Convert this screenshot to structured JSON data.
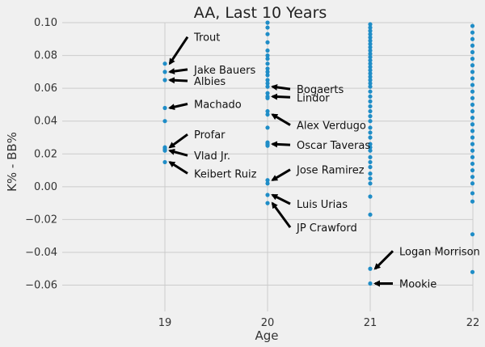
{
  "chart_data": {
    "type": "scatter",
    "title": "AA, Last 10 Years",
    "xlabel": "Age",
    "ylabel": "K% - BB%",
    "xlim": [
      18.0,
      22.0
    ],
    "ylim": [
      -0.076,
      0.1
    ],
    "xticks": [
      19,
      20,
      21,
      22
    ],
    "yticks": [
      -0.06,
      -0.04,
      -0.02,
      0.0,
      0.02,
      0.04,
      0.06,
      0.08,
      0.1
    ],
    "ytick_labels": [
      "−0.06",
      "−0.04",
      "−0.02",
      "0.00",
      "0.02",
      "0.04",
      "0.06",
      "0.08",
      "0.10"
    ],
    "grid": true,
    "color": "#1f8dc7",
    "series": [
      {
        "values": [
          [
            19,
            0.075
          ],
          [
            19,
            0.07
          ],
          [
            19,
            0.065
          ],
          [
            19,
            0.048
          ],
          [
            19,
            0.04
          ],
          [
            19,
            0.024
          ],
          [
            19,
            0.023
          ],
          [
            19,
            0.022
          ],
          [
            19,
            0.015
          ],
          [
            20,
            0.1
          ],
          [
            20,
            0.097
          ],
          [
            20,
            0.093
          ],
          [
            20,
            0.088
          ],
          [
            20,
            0.083
          ],
          [
            20,
            0.08
          ],
          [
            20,
            0.078
          ],
          [
            20,
            0.075
          ],
          [
            20,
            0.072
          ],
          [
            20,
            0.07
          ],
          [
            20,
            0.068
          ],
          [
            20,
            0.065
          ],
          [
            20,
            0.063
          ],
          [
            20,
            0.061
          ],
          [
            20,
            0.057
          ],
          [
            20,
            0.055
          ],
          [
            20,
            0.054
          ],
          [
            20,
            0.046
          ],
          [
            20,
            0.044
          ],
          [
            20,
            0.036
          ],
          [
            20,
            0.027
          ],
          [
            20,
            0.026
          ],
          [
            20,
            0.025
          ],
          [
            20,
            0.004
          ],
          [
            20,
            0.002
          ],
          [
            20,
            -0.005
          ],
          [
            20,
            -0.01
          ],
          [
            21,
            0.099
          ],
          [
            21,
            0.097
          ],
          [
            21,
            0.095
          ],
          [
            21,
            0.093
          ],
          [
            21,
            0.091
          ],
          [
            21,
            0.089
          ],
          [
            21,
            0.087
          ],
          [
            21,
            0.085
          ],
          [
            21,
            0.083
          ],
          [
            21,
            0.081
          ],
          [
            21,
            0.079
          ],
          [
            21,
            0.077
          ],
          [
            21,
            0.075
          ],
          [
            21,
            0.073
          ],
          [
            21,
            0.071
          ],
          [
            21,
            0.069
          ],
          [
            21,
            0.067
          ],
          [
            21,
            0.065
          ],
          [
            21,
            0.063
          ],
          [
            21,
            0.061
          ],
          [
            21,
            0.058
          ],
          [
            21,
            0.055
          ],
          [
            21,
            0.052
          ],
          [
            21,
            0.049
          ],
          [
            21,
            0.046
          ],
          [
            21,
            0.043
          ],
          [
            21,
            0.04
          ],
          [
            21,
            0.036
          ],
          [
            21,
            0.033
          ],
          [
            21,
            0.03
          ],
          [
            21,
            0.026
          ],
          [
            21,
            0.024
          ],
          [
            21,
            0.022
          ],
          [
            21,
            0.018
          ],
          [
            21,
            0.015
          ],
          [
            21,
            0.012
          ],
          [
            21,
            0.008
          ],
          [
            21,
            0.005
          ],
          [
            21,
            0.002
          ],
          [
            21,
            -0.006
          ],
          [
            21,
            -0.017
          ],
          [
            21,
            -0.05
          ],
          [
            21,
            -0.059
          ],
          [
            22,
            0.098
          ],
          [
            22,
            0.094
          ],
          [
            22,
            0.09
          ],
          [
            22,
            0.086
          ],
          [
            22,
            0.082
          ],
          [
            22,
            0.078
          ],
          [
            22,
            0.074
          ],
          [
            22,
            0.07
          ],
          [
            22,
            0.066
          ],
          [
            22,
            0.062
          ],
          [
            22,
            0.058
          ],
          [
            22,
            0.054
          ],
          [
            22,
            0.05
          ],
          [
            22,
            0.046
          ],
          [
            22,
            0.042
          ],
          [
            22,
            0.038
          ],
          [
            22,
            0.034
          ],
          [
            22,
            0.03
          ],
          [
            22,
            0.026
          ],
          [
            22,
            0.022
          ],
          [
            22,
            0.018
          ],
          [
            22,
            0.014
          ],
          [
            22,
            0.01
          ],
          [
            22,
            0.006
          ],
          [
            22,
            0.002
          ],
          [
            22,
            -0.004
          ],
          [
            22,
            -0.009
          ],
          [
            22,
            -0.029
          ],
          [
            22,
            -0.052
          ]
        ]
      }
    ],
    "annotations": [
      {
        "text": "Trout",
        "point": [
          19,
          0.075
        ]
      },
      {
        "text": "Jake Bauers",
        "point": [
          19,
          0.07
        ]
      },
      {
        "text": "Albies",
        "point": [
          19,
          0.065
        ]
      },
      {
        "text": "Machado",
        "point": [
          19,
          0.048
        ]
      },
      {
        "text": "Profar",
        "point": [
          19,
          0.024
        ]
      },
      {
        "text": "Vlad Jr.",
        "point": [
          19,
          0.022
        ]
      },
      {
        "text": "Keibert Ruiz",
        "point": [
          19,
          0.015
        ]
      },
      {
        "text": "Bogaerts",
        "point": [
          20,
          0.061
        ]
      },
      {
        "text": "Lindor",
        "point": [
          20,
          0.055
        ]
      },
      {
        "text": "Alex Verdugo",
        "point": [
          20,
          0.044
        ]
      },
      {
        "text": "Oscar Taveras",
        "point": [
          20,
          0.026
        ]
      },
      {
        "text": "Jose Ramirez",
        "point": [
          20,
          0.004
        ]
      },
      {
        "text": "Luis Urias",
        "point": [
          20,
          -0.005
        ]
      },
      {
        "text": "JP Crawford",
        "point": [
          20,
          -0.01
        ]
      },
      {
        "text": "Logan Morrison",
        "point": [
          21,
          -0.05
        ]
      },
      {
        "text": "Mookie",
        "point": [
          21,
          -0.059
        ]
      }
    ]
  }
}
